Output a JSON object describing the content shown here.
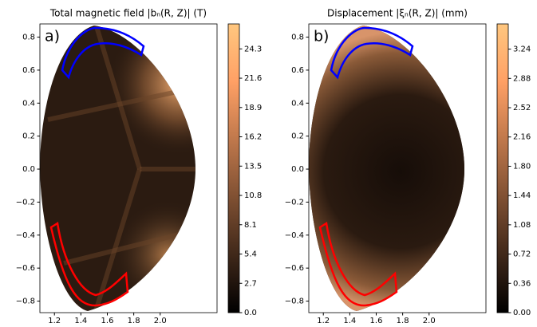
{
  "chart_data": [
    {
      "type": "heatmap",
      "title": "Total magnetic field |bₙ(R, Z)| (T)",
      "panel_label": "a)",
      "colormap": "copper",
      "xlim": [
        1.09,
        2.43
      ],
      "ylim": [
        -0.87,
        0.88
      ],
      "xticks": [
        1.2,
        1.4,
        1.6,
        1.8,
        {
          "value": 2,
          "label": "2.0"
        }
      ],
      "yticks": [
        0.8,
        0.6,
        0.4,
        0.2,
        {
          "value": 0,
          "label": "0.0"
        },
        {
          "value": -0.2,
          "label": "−0.2"
        },
        {
          "value": -0.4,
          "label": "−0.4"
        },
        {
          "value": -0.6,
          "label": "−0.6"
        },
        {
          "value": -0.8,
          "label": "−0.8"
        }
      ],
      "colorbar": {
        "lim": [
          0,
          26.6
        ],
        "ticks": [
          {
            "value": 0,
            "label": "0.0"
          },
          2.7,
          5.4,
          8.1,
          10.8,
          13.5,
          16.2,
          18.9,
          21.6,
          24.3
        ]
      }
    },
    {
      "type": "heatmap",
      "title": "Displacement |ξₙ(R, Z)| (mm)",
      "panel_label": "b)",
      "colormap": "copper",
      "xlim": [
        1.09,
        2.43
      ],
      "ylim": [
        -0.87,
        0.88
      ],
      "xticks": [
        1.2,
        1.4,
        1.6,
        1.8,
        {
          "value": 2,
          "label": "2.0"
        }
      ],
      "yticks": [
        0.8,
        0.6,
        0.4,
        0.2,
        {
          "value": 0,
          "label": "0.0"
        },
        {
          "value": -0.2,
          "label": "−0.2"
        },
        {
          "value": -0.4,
          "label": "−0.4"
        },
        {
          "value": -0.6,
          "label": "−0.6"
        },
        {
          "value": -0.8,
          "label": "−0.8"
        }
      ],
      "colorbar": {
        "lim": [
          0,
          3.55
        ],
        "ticks": [
          {
            "value": 0,
            "label": "0.00"
          },
          0.36,
          0.72,
          1.08,
          1.44,
          {
            "value": 1.8,
            "label": "1.80"
          },
          2.16,
          2.52,
          2.88,
          3.24
        ]
      }
    }
  ]
}
